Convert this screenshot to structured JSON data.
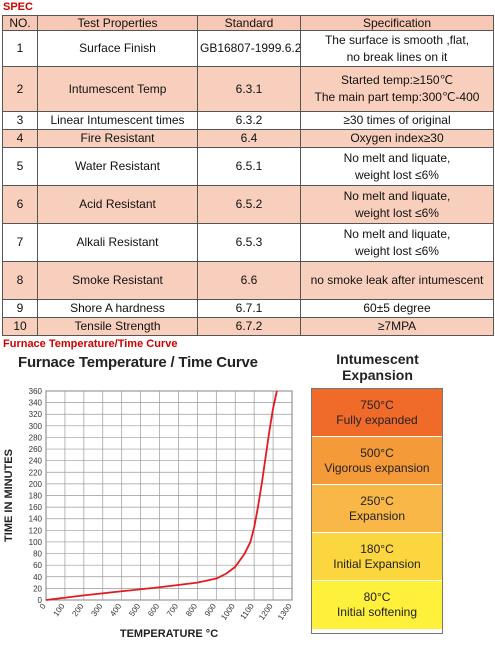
{
  "spec_title": "SPEC",
  "table": {
    "headers": [
      "NO.",
      "Test Properties",
      "Standard",
      "Specification"
    ],
    "rows": [
      {
        "no": "1",
        "prop": "Surface Finish",
        "std": "GB16807-1999.6.2",
        "spec": [
          "The surface is smooth ,flat,",
          "no break lines on it"
        ]
      },
      {
        "no": "2",
        "prop": "Intumescent Temp",
        "std": "6.3.1",
        "spec": [
          "Started temp:≥150℃",
          "The main part temp:300℃-400"
        ]
      },
      {
        "no": "3",
        "prop": "Linear Intumescent times",
        "std": "6.3.2",
        "spec": [
          "≥30 times of original"
        ]
      },
      {
        "no": "4",
        "prop": "Fire Resistant",
        "std": "6.4",
        "spec": [
          "Oxygen index≥30"
        ]
      },
      {
        "no": "5",
        "prop": "Water Resistant",
        "std": "6.5.1",
        "spec": [
          "No melt and liquate,",
          "weight lost ≤6%"
        ]
      },
      {
        "no": "6",
        "prop": "Acid Resistant",
        "std": "6.5.2",
        "spec": [
          "No melt and liquate,",
          "weight lost ≤6%"
        ]
      },
      {
        "no": "7",
        "prop": "Alkali Resistant",
        "std": "6.5.3",
        "spec": [
          "No melt and liquate,",
          "weight lost ≤6%"
        ]
      },
      {
        "no": "8",
        "prop": "Smoke Resistant",
        "std": "6.6",
        "spec": [
          "no smoke leak after intumescent"
        ]
      },
      {
        "no": "9",
        "prop": "Shore A hardness",
        "std": "6.7.1",
        "spec": [
          "60±5 degree"
        ]
      },
      {
        "no": "10",
        "prop": "Tensile Strength",
        "std": "6.7.2",
        "spec": [
          "≥7MPA"
        ]
      }
    ]
  },
  "furnace_title": "Furnace Temperature/Time Curve",
  "chart_data": {
    "type": "line",
    "title": "Furnace Temperature / Time Curve",
    "xlabel": "TEMPERATURE °C",
    "ylabel": "TIME IN MINUTES",
    "xlim": [
      0,
      1300
    ],
    "ylim": [
      0,
      360
    ],
    "xticks": [
      0,
      100,
      200,
      300,
      400,
      500,
      600,
      700,
      800,
      900,
      1000,
      1100,
      1200,
      1300
    ],
    "yticks": [
      0,
      20,
      40,
      60,
      80,
      100,
      120,
      140,
      160,
      180,
      200,
      220,
      240,
      260,
      280,
      300,
      320,
      340,
      360
    ],
    "grid": true,
    "series": [
      {
        "x": [
          0,
          200,
          400,
          600,
          800,
          900,
          950,
          1000,
          1050,
          1080,
          1100,
          1120,
          1140,
          1160,
          1180,
          1200,
          1220
        ],
        "y": [
          0,
          8,
          15,
          22,
          30,
          37,
          45,
          57,
          80,
          100,
          125,
          160,
          200,
          245,
          290,
          330,
          360
        ]
      }
    ],
    "line_color": "#e41a1c"
  },
  "legend": {
    "title_lines": [
      "Intumescent",
      "Expansion"
    ],
    "items": [
      {
        "temp": "750°C",
        "label": "Fully expanded",
        "color": "#f06a2a"
      },
      {
        "temp": "500°C",
        "label": "Vigorous expansion",
        "color": "#f59a38"
      },
      {
        "temp": "250°C",
        "label": "Expansion",
        "color": "#f8b747"
      },
      {
        "temp": "180°C",
        "label": "Initial Expansion",
        "color": "#fcd63e"
      },
      {
        "temp": "80°C",
        "label": "Initial softening",
        "color": "#fff03c"
      }
    ]
  }
}
